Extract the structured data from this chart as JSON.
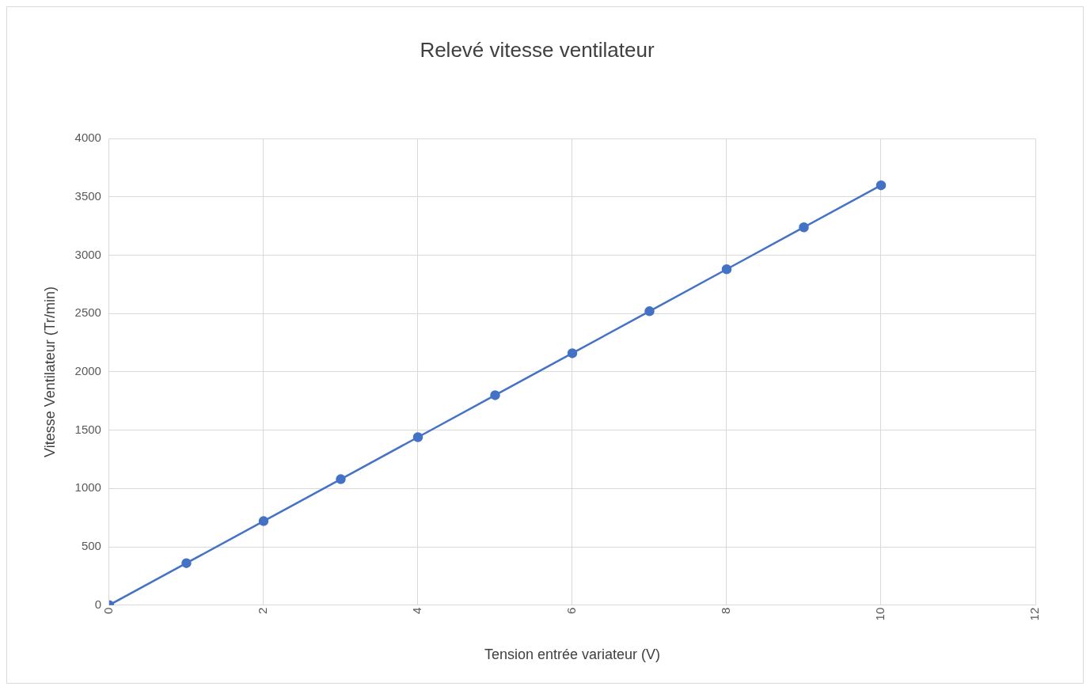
{
  "chart_data": {
    "type": "line",
    "title": "Relevé vitesse ventilateur",
    "xlabel": "Tension entrée variateur (V)",
    "ylabel": "Vitesse Ventilateur (Tr/min)",
    "x": [
      0,
      1,
      2,
      3,
      4,
      5,
      6,
      7,
      8,
      9,
      10
    ],
    "series": [
      {
        "color": "#4472c4",
        "values": [
          0,
          360,
          720,
          1080,
          1440,
          1800,
          2160,
          2520,
          2880,
          3240,
          3600
        ]
      }
    ],
    "xlim": [
      0,
      12
    ],
    "xticks": [
      0,
      2,
      4,
      6,
      8,
      10,
      12
    ],
    "ylim": [
      0,
      4000
    ],
    "yticks": [
      0,
      500,
      1000,
      1500,
      2000,
      2500,
      3000,
      3500,
      4000
    ],
    "grid": true,
    "legend": false,
    "marker": "circle",
    "line_style": "solid"
  }
}
